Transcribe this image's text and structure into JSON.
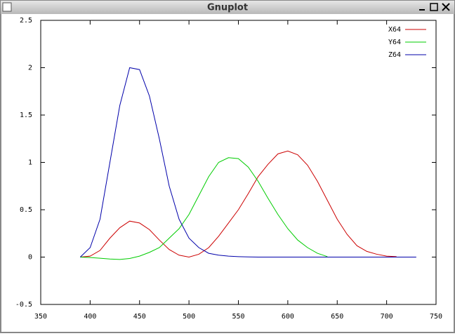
{
  "chart_data": {
    "type": "line",
    "title": "Gnuplot",
    "x": [
      390,
      400,
      410,
      420,
      430,
      440,
      450,
      460,
      470,
      480,
      490,
      500,
      510,
      520,
      530,
      540,
      550,
      560,
      570,
      580,
      590,
      600,
      610,
      620,
      630,
      640,
      650,
      660,
      670,
      680,
      690,
      700,
      710,
      720,
      730
    ],
    "series": [
      {
        "name": "X64",
        "color": "#cc0000",
        "values": [
          0,
          0.01,
          0.07,
          0.2,
          0.31,
          0.38,
          0.36,
          0.29,
          0.18,
          0.08,
          0.02,
          0,
          0.03,
          0.1,
          0.22,
          0.36,
          0.5,
          0.67,
          0.85,
          0.98,
          1.09,
          1.12,
          1.08,
          0.97,
          0.8,
          0.6,
          0.4,
          0.24,
          0.12,
          0.06,
          0.03,
          0.01,
          0.005,
          null,
          null
        ]
      },
      {
        "name": "Y64",
        "color": "#00cc00",
        "values": [
          0,
          -0.005,
          -0.012,
          -0.02,
          -0.025,
          -0.015,
          0.01,
          0.05,
          0.1,
          0.2,
          0.3,
          0.45,
          0.65,
          0.85,
          1.0,
          1.05,
          1.04,
          0.95,
          0.8,
          0.62,
          0.45,
          0.3,
          0.18,
          0.1,
          0.04,
          0.005,
          null,
          null,
          null,
          null,
          null,
          null,
          null,
          null,
          null
        ]
      },
      {
        "name": "Z64",
        "color": "#0000aa",
        "values": [
          0,
          0.1,
          0.4,
          1.0,
          1.6,
          2.0,
          1.98,
          1.7,
          1.25,
          0.75,
          0.4,
          0.2,
          0.1,
          0.04,
          0.02,
          0.01,
          0.005,
          0.002,
          0,
          0,
          0,
          0,
          0,
          0,
          0,
          0,
          0,
          0,
          0,
          0,
          0,
          0,
          0,
          0,
          0
        ]
      }
    ],
    "xlim": [
      350,
      750
    ],
    "xticks": [
      350,
      400,
      450,
      500,
      550,
      600,
      650,
      700,
      750
    ],
    "ylim": [
      -0.5,
      2.5
    ],
    "yticks": [
      -0.5,
      0,
      0.5,
      1,
      1.5,
      2,
      2.5
    ],
    "legend": "top-right"
  }
}
